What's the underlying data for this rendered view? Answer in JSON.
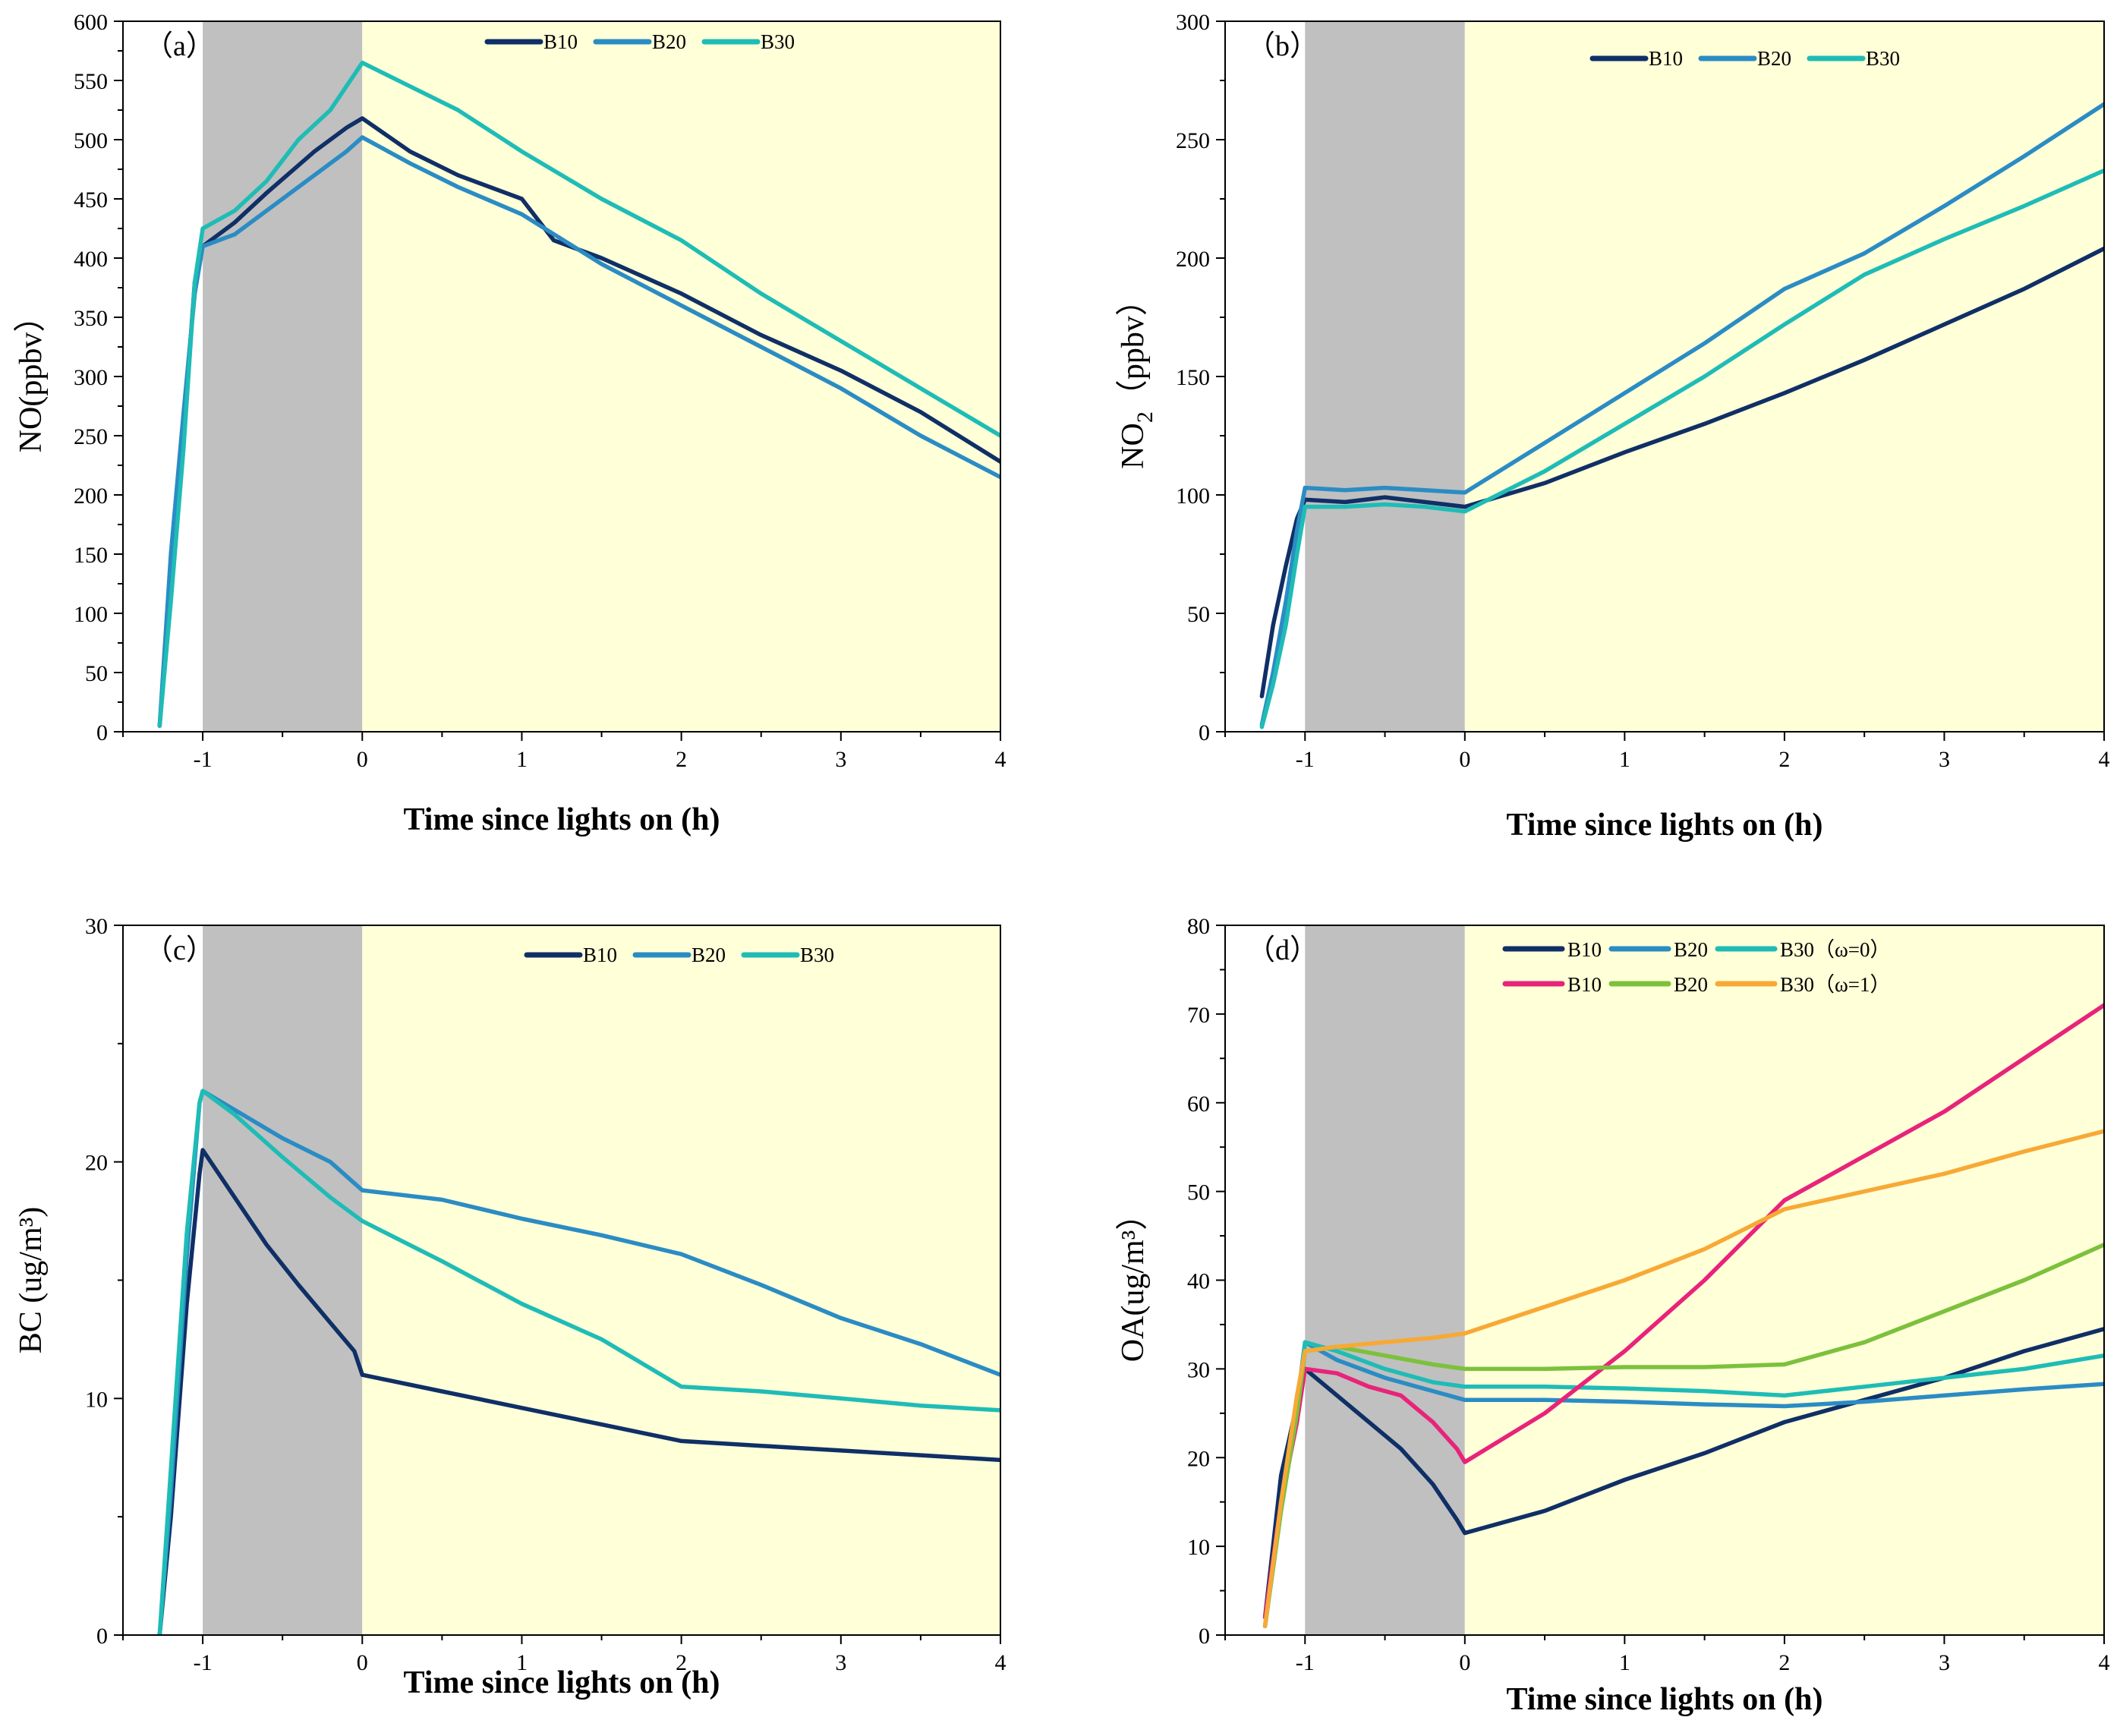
{
  "colors": {
    "dark_bg": "#c0c0c0",
    "light_bg": "#ffffd8",
    "axis": "#000000"
  },
  "chart_data": [
    {
      "type": "line",
      "panel_label": "（a）",
      "title": "",
      "xlabel": "Time since lights on (h)",
      "ylabel": "NO(ppbv）",
      "xlim": [
        -1.5,
        4
      ],
      "ylim": [
        0,
        600
      ],
      "xticks": [
        -1,
        0,
        1,
        2,
        3,
        4
      ],
      "yticks": [
        0,
        50,
        100,
        150,
        200,
        250,
        300,
        350,
        400,
        450,
        500,
        550,
        600
      ],
      "dark_period": [
        -1,
        0
      ],
      "light_period": [
        0,
        4
      ],
      "legend_position": "top-center",
      "series": [
        {
          "name": "B10",
          "color": "#0f2f66",
          "x": [
            -1.27,
            -1.2,
            -1.12,
            -1.05,
            -1.0,
            -0.8,
            -0.6,
            -0.3,
            -0.1,
            0.0,
            0.3,
            0.6,
            1.0,
            1.2,
            1.5,
            2.0,
            2.5,
            3.0,
            3.5,
            4.0
          ],
          "y": [
            5,
            120,
            250,
            380,
            410,
            430,
            455,
            490,
            510,
            518,
            490,
            470,
            450,
            415,
            400,
            370,
            335,
            305,
            270,
            228
          ]
        },
        {
          "name": "B20",
          "color": "#2b8cc4",
          "x": [
            -1.27,
            -1.2,
            -1.12,
            -1.05,
            -1.0,
            -0.8,
            -0.6,
            -0.3,
            -0.1,
            0.0,
            0.3,
            0.6,
            1.0,
            1.5,
            2.0,
            2.5,
            3.0,
            3.5,
            4.0
          ],
          "y": [
            5,
            150,
            270,
            370,
            410,
            420,
            440,
            470,
            490,
            502,
            480,
            460,
            437,
            395,
            360,
            325,
            290,
            250,
            215
          ]
        },
        {
          "name": "B30",
          "color": "#1fbcb6",
          "x": [
            -1.27,
            -1.2,
            -1.12,
            -1.05,
            -1.0,
            -0.8,
            -0.6,
            -0.4,
            -0.2,
            -0.05,
            0.0,
            0.3,
            0.6,
            1.0,
            1.5,
            2.0,
            2.5,
            3.0,
            3.5,
            4.0
          ],
          "y": [
            5,
            110,
            240,
            380,
            425,
            440,
            465,
            500,
            525,
            555,
            565,
            545,
            525,
            490,
            450,
            415,
            370,
            330,
            290,
            250
          ]
        }
      ]
    },
    {
      "type": "line",
      "panel_label": "（b）",
      "title": "",
      "xlabel": "Time since lights on (h)",
      "ylabel": "NO2（ppbv）",
      "ylabel_main": "NO",
      "ylabel_sub": "2",
      "ylabel_rest": "（ppbv）",
      "xlim": [
        -1.5,
        4
      ],
      "ylim": [
        0,
        300
      ],
      "xticks": [
        -1,
        0,
        1,
        2,
        3,
        4
      ],
      "yticks": [
        0,
        50,
        100,
        150,
        200,
        250,
        300
      ],
      "dark_period": [
        -1,
        0
      ],
      "light_period": [
        0,
        4
      ],
      "legend_position": "top-center",
      "series": [
        {
          "name": "B10",
          "color": "#0f2f66",
          "x": [
            -1.27,
            -1.2,
            -1.12,
            -1.05,
            -1.0,
            -0.75,
            -0.5,
            -0.25,
            0.0,
            0.5,
            1.0,
            1.5,
            2.0,
            2.5,
            3.0,
            3.5,
            4.0
          ],
          "y": [
            15,
            45,
            70,
            90,
            98,
            97,
            99,
            97,
            95,
            105,
            118,
            130,
            143,
            157,
            172,
            187,
            204
          ]
        },
        {
          "name": "B20",
          "color": "#2b8cc4",
          "x": [
            -1.27,
            -1.2,
            -1.12,
            -1.05,
            -1.0,
            -0.75,
            -0.5,
            -0.25,
            0.0,
            0.5,
            1.0,
            1.5,
            2.0,
            2.5,
            3.0,
            3.5,
            4.0
          ],
          "y": [
            3,
            25,
            55,
            85,
            103,
            102,
            103,
            102,
            101,
            122,
            143,
            164,
            187,
            202,
            222,
            243,
            265
          ]
        },
        {
          "name": "B30",
          "color": "#1fbcb6",
          "x": [
            -1.27,
            -1.2,
            -1.12,
            -1.05,
            -1.0,
            -0.75,
            -0.5,
            -0.25,
            0.0,
            0.5,
            1.0,
            1.5,
            2.0,
            2.5,
            3.0,
            3.5,
            4.0
          ],
          "y": [
            2,
            20,
            45,
            75,
            95,
            95,
            96,
            95,
            93,
            110,
            130,
            150,
            172,
            193,
            208,
            222,
            237
          ]
        }
      ]
    },
    {
      "type": "line",
      "panel_label": "（c）",
      "title": "",
      "xlabel": "Time since lights on (h)",
      "ylabel": "BC (ug/m³)",
      "xlim": [
        -1.5,
        4
      ],
      "ylim": [
        0,
        30
      ],
      "xticks": [
        -1,
        0,
        1,
        2,
        3,
        4
      ],
      "yticks": [
        0,
        10,
        20,
        30
      ],
      "dark_period": [
        -1,
        0
      ],
      "light_period": [
        0,
        4
      ],
      "legend_position": "top-center",
      "series": [
        {
          "name": "B10",
          "color": "#0f2f66",
          "x": [
            -1.27,
            -1.2,
            -1.1,
            -1.02,
            -1.0,
            -0.8,
            -0.6,
            -0.4,
            -0.2,
            -0.05,
            0.0,
            0.5,
            1.0,
            1.5,
            2.0,
            2.5,
            3.0,
            3.5,
            4.0
          ],
          "y": [
            0,
            5,
            14,
            19.5,
            20.5,
            18.5,
            16.5,
            14.8,
            13.2,
            12.0,
            11.0,
            10.3,
            9.6,
            8.9,
            8.2,
            8.0,
            7.8,
            7.6,
            7.4
          ]
        },
        {
          "name": "B20",
          "color": "#2b8cc4",
          "x": [
            -1.27,
            -1.2,
            -1.1,
            -1.02,
            -1.0,
            -0.8,
            -0.5,
            -0.2,
            0.0,
            0.5,
            1.0,
            1.5,
            2.0,
            2.5,
            3.0,
            3.5,
            4.0
          ],
          "y": [
            0,
            6,
            16,
            22.5,
            23,
            22.2,
            21.0,
            20.0,
            18.8,
            18.4,
            17.6,
            16.9,
            16.1,
            14.8,
            13.4,
            12.3,
            11.0
          ]
        },
        {
          "name": "B30",
          "color": "#1fbcb6",
          "x": [
            -1.27,
            -1.2,
            -1.1,
            -1.02,
            -1.0,
            -0.8,
            -0.5,
            -0.2,
            0.0,
            0.5,
            1.0,
            1.5,
            2.0,
            2.5,
            3.0,
            3.5,
            4.0
          ],
          "y": [
            0,
            7,
            17,
            22.5,
            23,
            22.0,
            20.2,
            18.5,
            17.5,
            15.8,
            14.0,
            12.5,
            10.5,
            10.3,
            10.0,
            9.7,
            9.5
          ]
        }
      ]
    },
    {
      "type": "line",
      "panel_label": "（d）",
      "title": "",
      "xlabel": "Time since lights on (h)",
      "ylabel": "OA(ug/m³）",
      "xlim": [
        -1.5,
        4
      ],
      "ylim": [
        0,
        80
      ],
      "xticks": [
        -1,
        0,
        1,
        2,
        3,
        4
      ],
      "yticks": [
        0,
        10,
        20,
        30,
        40,
        50,
        60,
        70,
        80
      ],
      "dark_period": [
        -1,
        0
      ],
      "light_period": [
        0,
        4
      ],
      "legend_position": "top-center",
      "legend_rows": [
        {
          "names": [
            "B10",
            "B20",
            "B30"
          ],
          "suffix": "（ω=0）"
        },
        {
          "names": [
            "B10",
            "B20",
            "B30"
          ],
          "suffix": "（ω=1）"
        }
      ],
      "series": [
        {
          "name": "B10",
          "group": "ω=0",
          "color": "#0f2f66",
          "x": [
            -1.25,
            -1.15,
            -1.05,
            -1.0,
            -0.8,
            -0.6,
            -0.4,
            -0.2,
            -0.05,
            0.0,
            0.5,
            1.0,
            1.5,
            2.0,
            2.5,
            3.0,
            3.5,
            4.0
          ],
          "y": [
            2,
            18,
            26,
            30,
            27,
            24,
            21,
            17,
            13,
            11.5,
            14,
            17.5,
            20.5,
            24,
            26.5,
            29,
            32,
            34.5
          ]
        },
        {
          "name": "B20",
          "group": "ω=0",
          "color": "#2b8cc4",
          "x": [
            -1.25,
            -1.15,
            -1.05,
            -1.0,
            -0.8,
            -0.5,
            -0.2,
            0.0,
            0.5,
            1.0,
            1.5,
            2.0,
            2.5,
            3.0,
            3.5,
            4.0
          ],
          "y": [
            1,
            15,
            26,
            33,
            31,
            29,
            27.5,
            26.5,
            26.5,
            26.3,
            26,
            25.8,
            26.3,
            27,
            27.7,
            28.3
          ]
        },
        {
          "name": "B30",
          "group": "ω=0",
          "color": "#1fbcb6",
          "x": [
            -1.25,
            -1.15,
            -1.05,
            -1.0,
            -0.8,
            -0.5,
            -0.2,
            0.0,
            0.5,
            1.0,
            1.5,
            2.0,
            2.5,
            3.0,
            3.5,
            4.0
          ],
          "y": [
            1,
            14,
            25,
            33,
            32,
            30,
            28.5,
            28,
            28,
            27.8,
            27.5,
            27,
            28,
            29,
            30,
            31.5
          ]
        },
        {
          "name": "B10",
          "group": "ω=1",
          "color": "#e8237a",
          "x": [
            -1.25,
            -1.15,
            -1.05,
            -1.0,
            -0.8,
            -0.6,
            -0.4,
            -0.2,
            -0.05,
            0.0,
            0.5,
            1.0,
            1.5,
            2.0,
            2.5,
            3.0,
            3.5,
            4.0
          ],
          "y": [
            2,
            15,
            24,
            30,
            29.5,
            28,
            27,
            24,
            21,
            19.5,
            25,
            32,
            40,
            49,
            54,
            59,
            65,
            71
          ]
        },
        {
          "name": "B20",
          "group": "ω=1",
          "color": "#7cc13c",
          "x": [
            -1.25,
            -1.15,
            -1.05,
            -1.0,
            -0.8,
            -0.5,
            -0.2,
            0.0,
            0.5,
            1.0,
            1.5,
            2.0,
            2.5,
            3.0,
            3.5,
            4.0
          ],
          "y": [
            1,
            14,
            25,
            32,
            32.5,
            31.5,
            30.5,
            30,
            30,
            30.2,
            30.2,
            30.5,
            33,
            36.5,
            40,
            44
          ]
        },
        {
          "name": "B30",
          "group": "ω=1",
          "color": "#f7a935",
          "x": [
            -1.25,
            -1.15,
            -1.05,
            -1.0,
            -0.8,
            -0.5,
            -0.2,
            0.0,
            0.5,
            1.0,
            1.5,
            2.0,
            2.5,
            3.0,
            3.5,
            4.0
          ],
          "y": [
            1,
            15,
            27,
            32,
            32.5,
            33,
            33.5,
            34,
            37,
            40,
            43.5,
            48,
            50,
            52,
            54.5,
            56.8
          ]
        }
      ]
    }
  ]
}
